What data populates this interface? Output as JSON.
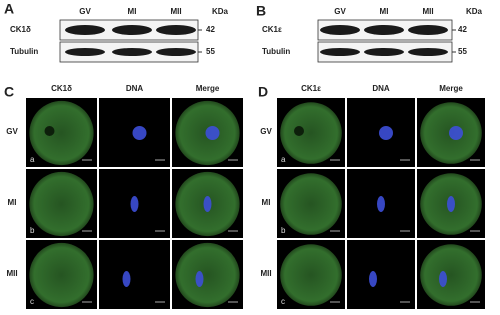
{
  "panels": [
    {
      "letter": "A",
      "lanes": [
        "GV",
        "MI",
        "MII"
      ],
      "unit": "KDa",
      "rows": [
        {
          "protein": "CK1δ",
          "marker": 42
        },
        {
          "protein": "Tubulin",
          "marker": 55
        }
      ]
    },
    {
      "letter": "B",
      "lanes": [
        "GV",
        "MI",
        "MII"
      ],
      "unit": "KDa",
      "rows": [
        {
          "protein": "CK1ε",
          "marker": 42
        },
        {
          "protein": "Tubulin",
          "marker": 55
        }
      ]
    },
    {
      "letter": "C",
      "columns": [
        "CK1δ",
        "DNA",
        "Merge"
      ],
      "rows": [
        {
          "stage": "GV",
          "sub": "a"
        },
        {
          "stage": "MI",
          "sub": "b"
        },
        {
          "stage": "MII",
          "sub": "c"
        }
      ]
    },
    {
      "letter": "D",
      "columns": [
        "CK1ε",
        "DNA",
        "Merge"
      ],
      "rows": [
        {
          "stage": "GV",
          "sub": "a"
        },
        {
          "stage": "MI",
          "sub": "b"
        },
        {
          "stage": "MII",
          "sub": "c"
        }
      ]
    }
  ]
}
